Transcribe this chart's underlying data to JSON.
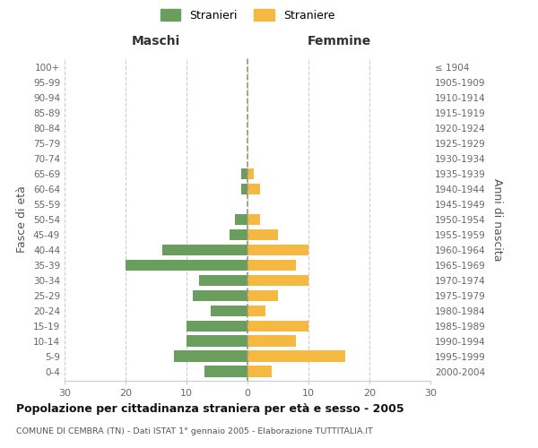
{
  "age_groups": [
    "0-4",
    "5-9",
    "10-14",
    "15-19",
    "20-24",
    "25-29",
    "30-34",
    "35-39",
    "40-44",
    "45-49",
    "50-54",
    "55-59",
    "60-64",
    "65-69",
    "70-74",
    "75-79",
    "80-84",
    "85-89",
    "90-94",
    "95-99",
    "100+"
  ],
  "birth_years": [
    "2000-2004",
    "1995-1999",
    "1990-1994",
    "1985-1989",
    "1980-1984",
    "1975-1979",
    "1970-1974",
    "1965-1969",
    "1960-1964",
    "1955-1959",
    "1950-1954",
    "1945-1949",
    "1940-1944",
    "1935-1939",
    "1930-1934",
    "1925-1929",
    "1920-1924",
    "1915-1919",
    "1910-1914",
    "1905-1909",
    "≤ 1904"
  ],
  "males": [
    7,
    12,
    10,
    10,
    6,
    9,
    8,
    20,
    14,
    3,
    2,
    0,
    1,
    1,
    0,
    0,
    0,
    0,
    0,
    0,
    0
  ],
  "females": [
    4,
    16,
    8,
    10,
    3,
    5,
    10,
    8,
    10,
    5,
    2,
    0,
    2,
    1,
    0,
    0,
    0,
    0,
    0,
    0,
    0
  ],
  "male_color": "#6a9e5e",
  "female_color": "#f5b942",
  "xlim": 30,
  "title": "Popolazione per cittadinanza straniera per età e sesso - 2005",
  "subtitle": "COMUNE DI CEMBRA (TN) - Dati ISTAT 1° gennaio 2005 - Elaborazione TUTTITALIA.IT",
  "ylabel_left": "Fasce di età",
  "ylabel_right": "Anni di nascita",
  "xlabel_left": "Maschi",
  "xlabel_right": "Femmine",
  "legend_male": "Stranieri",
  "legend_female": "Straniere",
  "background_color": "#ffffff",
  "grid_color": "#cccccc",
  "center_line_color": "#999977"
}
